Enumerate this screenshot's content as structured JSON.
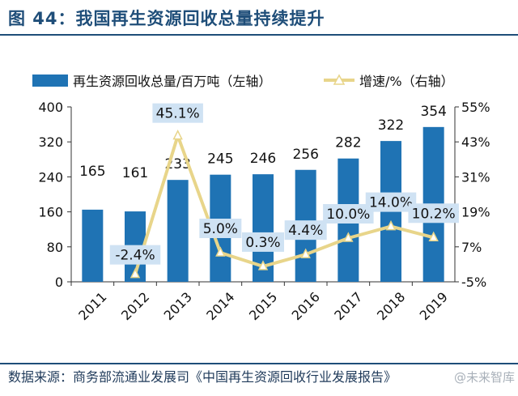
{
  "title": "图 44：我国再生资源回收总量持续提升",
  "source": "数据来源：商务部流通业发展司《中国再生资源回收行业发展报告》",
  "watermark": "@未来智库",
  "colors": {
    "bar": "#1f73b4",
    "line": "#e8d58a",
    "label_bg": "#cfe2f3",
    "title": "#1f4e79"
  },
  "chart_data": {
    "type": "bar",
    "categories": [
      "2011",
      "2012",
      "2013",
      "2014",
      "2015",
      "2016",
      "2017",
      "2018",
      "2019"
    ],
    "series": [
      {
        "name": "再生资源回收总量/百万吨（左轴）",
        "type": "bar",
        "axis": "left",
        "values": [
          165,
          161,
          233,
          245,
          246,
          256,
          282,
          322,
          354
        ]
      },
      {
        "name": "增速/%（右轴）",
        "type": "line",
        "axis": "right",
        "values": [
          null,
          -2.4,
          45.1,
          5.0,
          0.3,
          4.4,
          10.0,
          14.0,
          10.2
        ],
        "labels": [
          "",
          "-2.4%",
          "45.1%",
          "5.0%",
          "0.3%",
          "4.4%",
          "10.0%",
          "14.0%",
          "10.2%"
        ]
      }
    ],
    "y_left": {
      "ylim": [
        0,
        400
      ],
      "ticks": [
        0,
        80,
        160,
        240,
        320,
        400
      ],
      "tick_labels": [
        "0",
        "80",
        "160",
        "240",
        "320",
        "400"
      ]
    },
    "y_right": {
      "ylim": [
        -5,
        55
      ],
      "ticks": [
        -5,
        7,
        19,
        31,
        43,
        55
      ],
      "tick_labels": [
        "-5%",
        "7%",
        "19%",
        "31%",
        "43%",
        "55%"
      ]
    },
    "legend": {
      "position": "top"
    },
    "grid": false
  }
}
